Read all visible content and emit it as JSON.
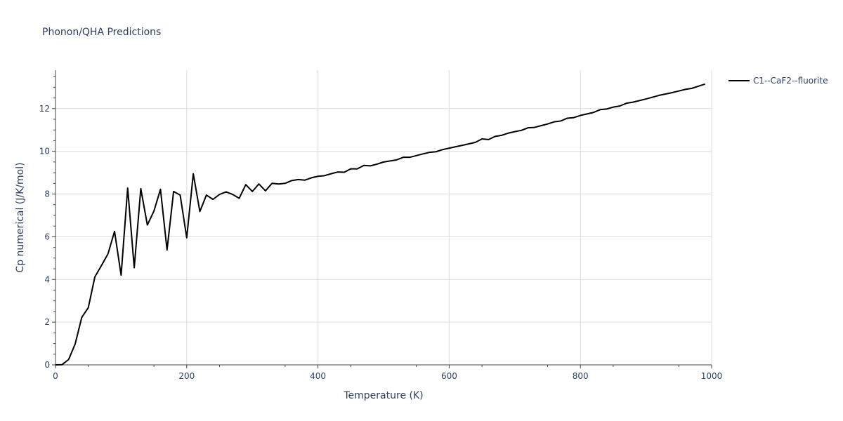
{
  "chart_data": {
    "type": "line",
    "title": "Phonon/QHA Predictions",
    "xlabel": "Temperature (K)",
    "ylabel": "Cp numerical (J/K/mol)",
    "xlim": [
      0,
      1000
    ],
    "ylim": [
      0,
      13.8
    ],
    "x_ticks": [
      0,
      200,
      400,
      600,
      800,
      1000
    ],
    "y_ticks": [
      0,
      2,
      4,
      6,
      8,
      10,
      12
    ],
    "x_tick_labels": [
      "0",
      "200",
      "400",
      "600",
      "800",
      "1000"
    ],
    "y_tick_labels": [
      "0",
      "2",
      "4",
      "6",
      "8",
      "10",
      "12"
    ],
    "grid": true,
    "legend_position": "top-right",
    "series": [
      {
        "name": "C1--CaF2--fluorite",
        "color": "#000000",
        "x": [
          0,
          10,
          20,
          30,
          40,
          50,
          60,
          70,
          80,
          90,
          100,
          110,
          120,
          130,
          140,
          150,
          160,
          170,
          180,
          190,
          200,
          210,
          220,
          230,
          240,
          250,
          260,
          270,
          280,
          290,
          300,
          310,
          320,
          330,
          340,
          350,
          360,
          370,
          380,
          390,
          400,
          410,
          420,
          430,
          440,
          450,
          460,
          470,
          480,
          490,
          500,
          520,
          530,
          540,
          560,
          570,
          580,
          590,
          600,
          620,
          630,
          640,
          650,
          660,
          670,
          680,
          690,
          700,
          710,
          720,
          730,
          740,
          750,
          760,
          770,
          780,
          790,
          800,
          810,
          820,
          830,
          840,
          850,
          860,
          870,
          880,
          900,
          920,
          940,
          960,
          970,
          980,
          990
        ],
        "y": [
          0.0,
          0.01,
          0.25,
          0.98,
          2.22,
          2.68,
          4.12,
          4.65,
          5.2,
          6.25,
          4.2,
          8.28,
          4.55,
          8.25,
          6.55,
          7.2,
          8.22,
          5.38,
          8.12,
          7.95,
          5.95,
          8.95,
          7.18,
          7.95,
          7.75,
          7.98,
          8.1,
          7.98,
          7.8,
          8.44,
          8.12,
          8.47,
          8.15,
          8.5,
          8.47,
          8.5,
          8.63,
          8.68,
          8.65,
          8.76,
          8.83,
          8.86,
          8.95,
          9.03,
          9.02,
          9.18,
          9.18,
          9.34,
          9.32,
          9.4,
          9.5,
          9.6,
          9.72,
          9.72,
          9.88,
          9.95,
          9.98,
          10.08,
          10.15,
          10.28,
          10.35,
          10.42,
          10.58,
          10.55,
          10.7,
          10.75,
          10.85,
          10.92,
          10.98,
          11.1,
          11.12,
          11.2,
          11.28,
          11.38,
          11.42,
          11.55,
          11.58,
          11.68,
          11.75,
          11.82,
          11.95,
          11.98,
          12.07,
          12.12,
          12.25,
          12.3,
          12.45,
          12.62,
          12.75,
          12.9,
          12.95,
          13.05,
          13.15
        ]
      }
    ]
  }
}
